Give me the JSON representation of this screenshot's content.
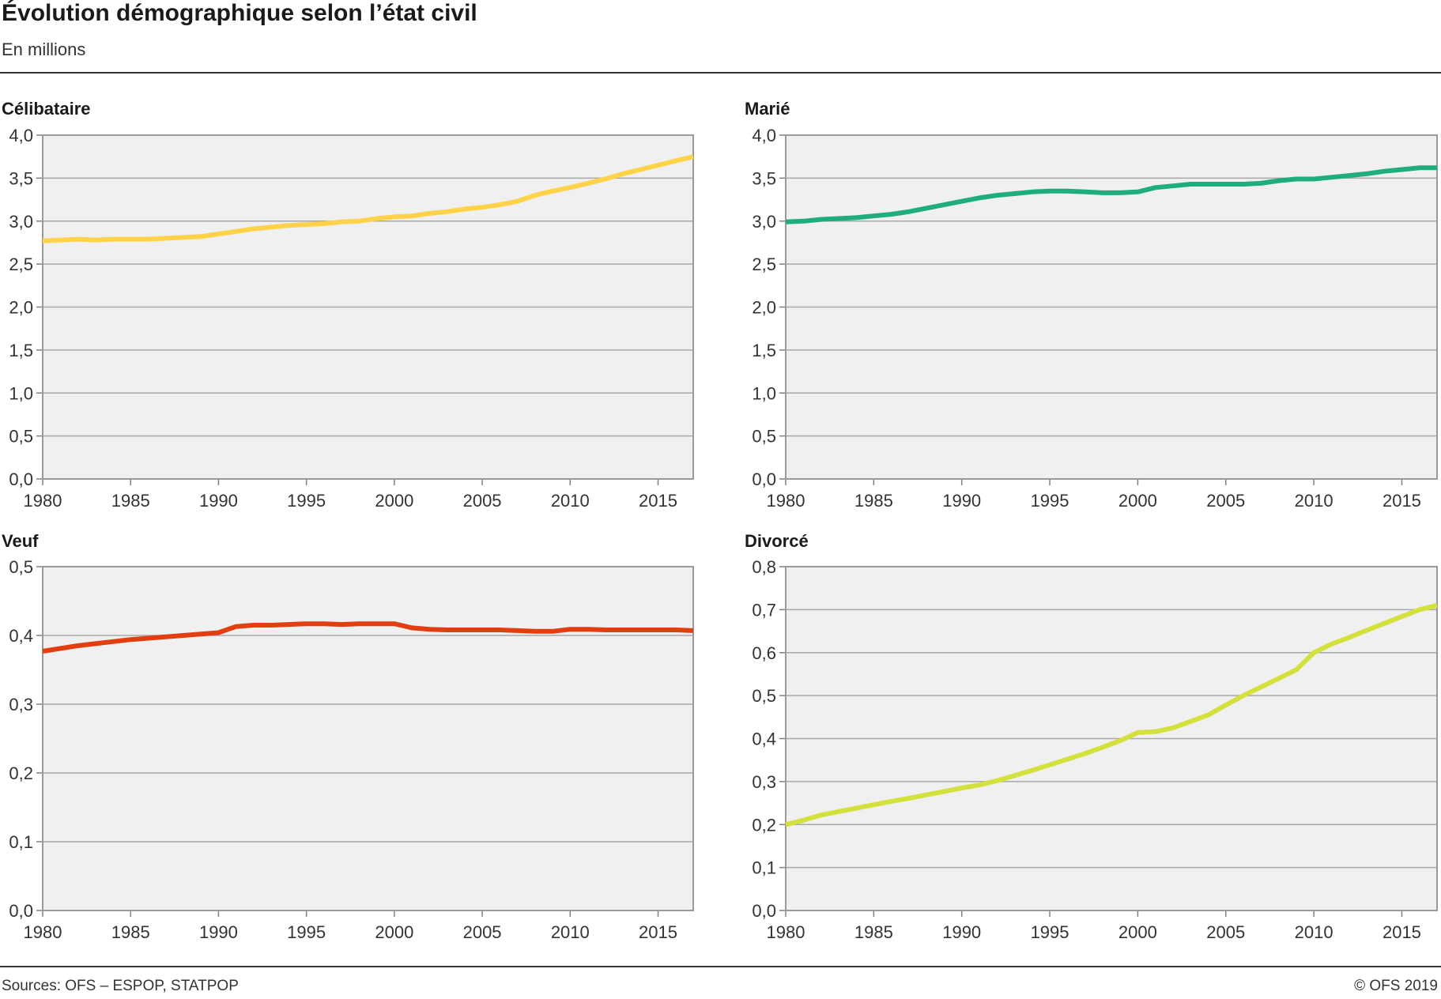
{
  "header": {
    "title": "Évolution démographique selon l’état civil",
    "subtitle": "En millions"
  },
  "footer": {
    "source": "Sources: OFS – ESPOP, STATPOP",
    "copyright": "© OFS 2019"
  },
  "chart_data": [
    {
      "type": "line",
      "title": "Célibataire",
      "color": "#fed34a",
      "ylim": [
        0,
        4
      ],
      "yticks": [
        "0,0",
        "0,5",
        "1,0",
        "1,5",
        "2,0",
        "2,5",
        "3,0",
        "3,5",
        "4,0"
      ],
      "xlim": [
        1980,
        2017
      ],
      "xticks": [
        "1980",
        "1985",
        "1990",
        "1995",
        "2000",
        "2005",
        "2010",
        "2015"
      ],
      "grid": true,
      "x": [
        1980,
        1981,
        1982,
        1983,
        1984,
        1985,
        1986,
        1987,
        1988,
        1989,
        1990,
        1991,
        1992,
        1993,
        1994,
        1995,
        1996,
        1997,
        1998,
        1999,
        2000,
        2001,
        2002,
        2003,
        2004,
        2005,
        2006,
        2007,
        2008,
        2009,
        2010,
        2011,
        2012,
        2013,
        2014,
        2015,
        2016,
        2017
      ],
      "series": [
        {
          "values": [
            2.77,
            2.78,
            2.79,
            2.78,
            2.79,
            2.79,
            2.79,
            2.8,
            2.81,
            2.82,
            2.85,
            2.88,
            2.91,
            2.93,
            2.95,
            2.96,
            2.97,
            2.99,
            3.0,
            3.03,
            3.05,
            3.06,
            3.09,
            3.11,
            3.14,
            3.16,
            3.19,
            3.23,
            3.3,
            3.35,
            3.39,
            3.44,
            3.49,
            3.55,
            3.6,
            3.65,
            3.7,
            3.75
          ]
        }
      ]
    },
    {
      "type": "line",
      "title": "Marié",
      "color": "#1fad80",
      "ylim": [
        0,
        4
      ],
      "yticks": [
        "0,0",
        "0,5",
        "1,0",
        "1,5",
        "2,0",
        "2,5",
        "3,0",
        "3,5",
        "4,0"
      ],
      "xlim": [
        1980,
        2017
      ],
      "xticks": [
        "1980",
        "1985",
        "1990",
        "1995",
        "2000",
        "2005",
        "2010",
        "2015"
      ],
      "grid": true,
      "x": [
        1980,
        1981,
        1982,
        1983,
        1984,
        1985,
        1986,
        1987,
        1988,
        1989,
        1990,
        1991,
        1992,
        1993,
        1994,
        1995,
        1996,
        1997,
        1998,
        1999,
        2000,
        2001,
        2002,
        2003,
        2004,
        2005,
        2006,
        2007,
        2008,
        2009,
        2010,
        2011,
        2012,
        2013,
        2014,
        2015,
        2016,
        2017
      ],
      "series": [
        {
          "values": [
            2.99,
            3.0,
            3.02,
            3.03,
            3.04,
            3.06,
            3.08,
            3.11,
            3.15,
            3.19,
            3.23,
            3.27,
            3.3,
            3.32,
            3.34,
            3.35,
            3.35,
            3.34,
            3.33,
            3.33,
            3.34,
            3.39,
            3.41,
            3.43,
            3.43,
            3.43,
            3.43,
            3.44,
            3.47,
            3.49,
            3.49,
            3.51,
            3.53,
            3.55,
            3.58,
            3.6,
            3.62,
            3.62
          ]
        }
      ]
    },
    {
      "type": "line",
      "title": "Veuf",
      "color": "#e23e0f",
      "ylim": [
        0,
        0.5
      ],
      "yticks": [
        "0,0",
        "0,1",
        "0,2",
        "0,3",
        "0,4",
        "0,5"
      ],
      "xlim": [
        1980,
        2017
      ],
      "xticks": [
        "1980",
        "1985",
        "1990",
        "1995",
        "2000",
        "2005",
        "2010",
        "2015"
      ],
      "grid": true,
      "x": [
        1980,
        1981,
        1982,
        1983,
        1984,
        1985,
        1986,
        1987,
        1988,
        1989,
        1990,
        1991,
        1992,
        1993,
        1994,
        1995,
        1996,
        1997,
        1998,
        1999,
        2000,
        2001,
        2002,
        2003,
        2004,
        2005,
        2006,
        2007,
        2008,
        2009,
        2010,
        2011,
        2012,
        2013,
        2014,
        2015,
        2016,
        2017
      ],
      "series": [
        {
          "values": [
            0.377,
            0.381,
            0.385,
            0.388,
            0.391,
            0.394,
            0.396,
            0.398,
            0.4,
            0.402,
            0.404,
            0.413,
            0.415,
            0.415,
            0.416,
            0.417,
            0.417,
            0.416,
            0.417,
            0.417,
            0.417,
            0.411,
            0.409,
            0.408,
            0.408,
            0.408,
            0.408,
            0.407,
            0.406,
            0.406,
            0.409,
            0.409,
            0.408,
            0.408,
            0.408,
            0.408,
            0.408,
            0.407
          ]
        }
      ]
    },
    {
      "type": "line",
      "title": "Divorcé",
      "color": "#d4e03c",
      "ylim": [
        0,
        0.8
      ],
      "yticks": [
        "0,0",
        "0,1",
        "0,2",
        "0,3",
        "0,4",
        "0,5",
        "0,6",
        "0,7",
        "0,8"
      ],
      "xlim": [
        1980,
        2017
      ],
      "xticks": [
        "1980",
        "1985",
        "1990",
        "1995",
        "2000",
        "2005",
        "2010",
        "2015"
      ],
      "grid": true,
      "x": [
        1980,
        1981,
        1982,
        1983,
        1984,
        1985,
        1986,
        1987,
        1988,
        1989,
        1990,
        1991,
        1992,
        1993,
        1994,
        1995,
        1996,
        1997,
        1998,
        1999,
        2000,
        2001,
        2002,
        2003,
        2004,
        2005,
        2006,
        2007,
        2008,
        2009,
        2010,
        2011,
        2012,
        2013,
        2014,
        2015,
        2016,
        2017
      ],
      "series": [
        {
          "values": [
            0.2,
            0.21,
            0.222,
            0.23,
            0.238,
            0.246,
            0.254,
            0.261,
            0.269,
            0.277,
            0.285,
            0.292,
            0.302,
            0.314,
            0.326,
            0.339,
            0.352,
            0.365,
            0.38,
            0.395,
            0.414,
            0.416,
            0.425,
            0.44,
            0.455,
            0.478,
            0.5,
            0.52,
            0.54,
            0.56,
            0.6,
            0.62,
            0.635,
            0.652,
            0.668,
            0.684,
            0.7,
            0.71
          ]
        }
      ]
    }
  ]
}
